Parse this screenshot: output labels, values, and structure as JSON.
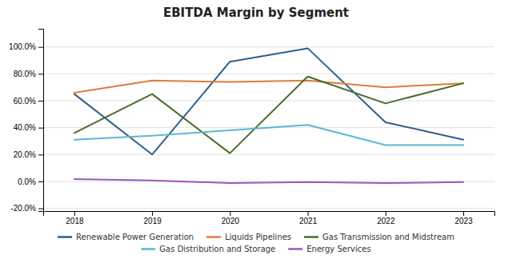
{
  "chart_data": {
    "type": "line",
    "title": "EBITDA Margin by Segment",
    "x": [
      2018,
      2019,
      2020,
      2021,
      2022,
      2023
    ],
    "series": [
      {
        "name": "Renewable Power Generation",
        "color": "#2e5f8a",
        "values": [
          0.65,
          0.2,
          0.89,
          0.99,
          0.44,
          0.31
        ]
      },
      {
        "name": "Liquids Pipelines",
        "color": "#e07b39",
        "values": [
          0.66,
          0.75,
          0.74,
          0.75,
          0.7,
          0.73
        ]
      },
      {
        "name": "Gas Transmission and Midstream",
        "color": "#4a6b2a",
        "values": [
          0.36,
          0.65,
          0.21,
          0.78,
          0.58,
          0.73
        ]
      },
      {
        "name": "Gas Distribution and Storage",
        "color": "#5bb8d4",
        "values": [
          0.31,
          0.34,
          0.38,
          0.42,
          0.27,
          0.27
        ]
      },
      {
        "name": "Energy Services",
        "color": "#9b59b6",
        "values": [
          0.018,
          0.008,
          -0.012,
          -0.005,
          -0.012,
          -0.005
        ]
      }
    ],
    "xlim": [
      2017.6,
      2023.4
    ],
    "xticks": [
      2018,
      2019,
      2020,
      2021,
      2022,
      2023
    ],
    "ylim": [
      -0.22,
      1.135
    ],
    "yticks": [
      {
        "value": -0.2,
        "label": "-20.0%"
      },
      {
        "value": 0.0,
        "label": "0.0%"
      },
      {
        "value": 0.2,
        "label": "20.0%"
      },
      {
        "value": 0.4,
        "label": "40.0%"
      },
      {
        "value": 0.6,
        "label": "60.0%"
      },
      {
        "value": 0.8,
        "label": "80.0%"
      },
      {
        "value": 1.0,
        "label": "100.0%"
      }
    ],
    "grid": true,
    "legend": "bottom"
  }
}
